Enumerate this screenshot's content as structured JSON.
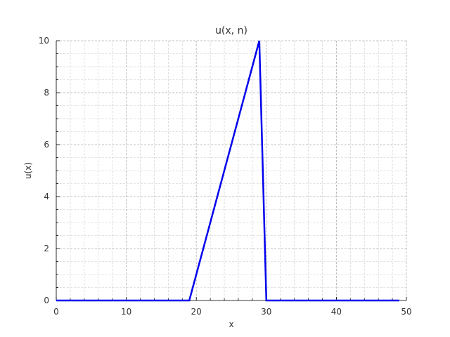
{
  "chart_data": {
    "type": "line",
    "title": "u(x, n)",
    "xlabel": "x",
    "ylabel": "u(x)",
    "xlim": [
      0,
      50
    ],
    "ylim": [
      0,
      10
    ],
    "xticks": [
      0,
      10,
      20,
      30,
      40,
      50
    ],
    "yticks": [
      0,
      2,
      4,
      6,
      8,
      10
    ],
    "xtick_labels": [
      "0",
      "10",
      "20",
      "30",
      "40",
      "50"
    ],
    "ytick_labels": [
      "0",
      "2",
      "4",
      "6",
      "8",
      "10"
    ],
    "grid": true,
    "minor_grid": true,
    "series": [
      {
        "color": "#0000ee",
        "x": [
          0,
          19,
          29,
          30,
          49
        ],
        "y": [
          0,
          0,
          10,
          0,
          0
        ]
      }
    ]
  }
}
